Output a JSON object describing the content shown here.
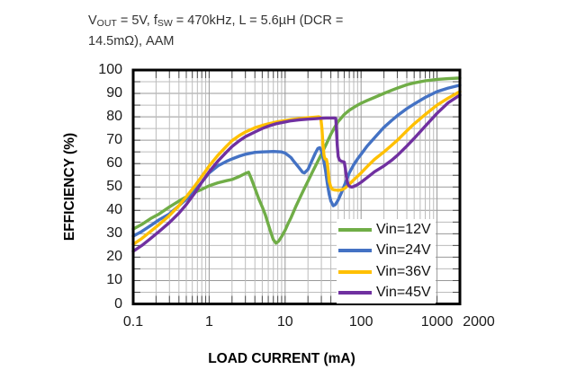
{
  "header": {
    "title_plain": "VOUT = 5V, fSW = 470kHz, L = 5.6µH (DCR = 14.5mΩ), AAM",
    "title_lines": [
      [
        {
          "t": "V"
        },
        {
          "t": "OUT",
          "sub": true
        },
        {
          "t": " = 5V, f"
        },
        {
          "t": "SW",
          "sub": true
        },
        {
          "t": " = 470kHz, L = 5.6µH (DCR ="
        }
      ],
      [
        {
          "t": "14.5mΩ), AAM"
        }
      ]
    ]
  },
  "chart_data": {
    "type": "line",
    "title": "VOUT = 5V, fSW = 470kHz, L = 5.6µH (DCR = 14.5mΩ), AAM",
    "xlabel": "LOAD CURRENT (mA)",
    "ylabel": "EFFICIENCY (%)",
    "x_scale": "log",
    "xlim_mA": [
      0.1,
      2000
    ],
    "ylim_pct": [
      0,
      100
    ],
    "x_ticks": {
      "values": [
        0.1,
        1,
        10,
        100,
        1000,
        2000
      ],
      "labels": [
        "0.1",
        "1",
        "10",
        "100",
        "1000",
        "2000"
      ]
    },
    "y_ticks": {
      "step": 10
    },
    "grid": {
      "y_step_pct": 5,
      "x_log_minors": true
    },
    "frame_color": "#000000",
    "gridline_color_minor": "#bcbcbc",
    "gridline_color_major": "#999999",
    "tick_color": "#4d4d4d",
    "legend_position": "inside-lower-right",
    "series": [
      {
        "name": "Vin=12V",
        "color": "#70AD47",
        "points": [
          [
            0.1,
            32
          ],
          [
            0.13,
            34
          ],
          [
            0.17,
            36.5
          ],
          [
            0.22,
            38.5
          ],
          [
            0.3,
            41.5
          ],
          [
            0.4,
            44
          ],
          [
            0.5,
            45.8
          ],
          [
            0.65,
            47.8
          ],
          [
            0.8,
            49
          ],
          [
            1,
            50.5
          ],
          [
            1.3,
            51.8
          ],
          [
            1.7,
            52.7
          ],
          [
            2,
            53.2
          ],
          [
            2.5,
            54.5
          ],
          [
            3,
            55.8
          ],
          [
            3.3,
            56.3
          ],
          [
            3.6,
            53.5
          ],
          [
            4,
            49.5
          ],
          [
            4.5,
            45
          ],
          [
            5,
            41.5
          ],
          [
            5.5,
            38
          ],
          [
            6,
            34
          ],
          [
            6.5,
            30.5
          ],
          [
            7,
            27.5
          ],
          [
            7.6,
            26
          ],
          [
            8.2,
            26.8
          ],
          [
            9,
            28.8
          ],
          [
            10,
            31.5
          ],
          [
            11,
            34.5
          ],
          [
            12,
            37
          ],
          [
            14,
            42
          ],
          [
            16,
            46
          ],
          [
            18,
            49.5
          ],
          [
            20,
            52.5
          ],
          [
            23,
            56.5
          ],
          [
            26,
            60
          ],
          [
            30,
            64
          ],
          [
            35,
            68.5
          ],
          [
            40,
            72.5
          ],
          [
            45,
            75.5
          ],
          [
            50,
            78
          ],
          [
            60,
            81
          ],
          [
            70,
            82.8
          ],
          [
            80,
            84
          ],
          [
            90,
            85
          ],
          [
            100,
            85.8
          ],
          [
            120,
            87
          ],
          [
            150,
            88.3
          ],
          [
            200,
            90
          ],
          [
            250,
            91.3
          ],
          [
            300,
            92.3
          ],
          [
            400,
            93.7
          ],
          [
            500,
            94.5
          ],
          [
            700,
            95.4
          ],
          [
            1000,
            96
          ],
          [
            1400,
            96.3
          ],
          [
            2000,
            96.6
          ]
        ]
      },
      {
        "name": "Vin=24V",
        "color": "#4472C4",
        "points": [
          [
            0.1,
            29
          ],
          [
            0.13,
            31
          ],
          [
            0.17,
            33.5
          ],
          [
            0.22,
            36
          ],
          [
            0.3,
            38.5
          ],
          [
            0.4,
            42
          ],
          [
            0.5,
            44.8
          ],
          [
            0.65,
            48.5
          ],
          [
            0.8,
            52
          ],
          [
            1,
            56
          ],
          [
            1.3,
            59
          ],
          [
            1.7,
            61
          ],
          [
            2,
            62
          ],
          [
            2.5,
            63.2
          ],
          [
            3,
            64
          ],
          [
            4,
            64.8
          ],
          [
            5,
            65
          ],
          [
            6,
            65.1
          ],
          [
            7,
            65.2
          ],
          [
            8,
            65.1
          ],
          [
            9,
            65
          ],
          [
            10,
            64.5
          ],
          [
            11,
            63.5
          ],
          [
            12,
            62.5
          ],
          [
            13,
            61
          ],
          [
            15,
            58.5
          ],
          [
            17,
            56.3
          ],
          [
            18,
            56
          ],
          [
            20,
            57.5
          ],
          [
            22,
            60.5
          ],
          [
            25,
            64.5
          ],
          [
            27,
            66.5
          ],
          [
            28.5,
            66.8
          ],
          [
            30,
            65.5
          ],
          [
            32,
            62
          ],
          [
            34,
            57
          ],
          [
            36,
            51.5
          ],
          [
            38,
            47
          ],
          [
            40,
            44
          ],
          [
            43,
            42
          ],
          [
            46,
            42.5
          ],
          [
            50,
            44.5
          ],
          [
            55,
            47.5
          ],
          [
            60,
            50.5
          ],
          [
            70,
            56
          ],
          [
            80,
            59.5
          ],
          [
            90,
            62
          ],
          [
            100,
            64
          ],
          [
            120,
            67.5
          ],
          [
            150,
            71
          ],
          [
            200,
            75.5
          ],
          [
            250,
            78.3
          ],
          [
            300,
            80.5
          ],
          [
            400,
            83.5
          ],
          [
            500,
            85.5
          ],
          [
            700,
            88.3
          ],
          [
            1000,
            90.8
          ],
          [
            1400,
            92.3
          ],
          [
            2000,
            93.5
          ]
        ]
      },
      {
        "name": "Vin=36V",
        "color": "#FFC000",
        "points": [
          [
            0.1,
            25.5
          ],
          [
            0.13,
            28
          ],
          [
            0.17,
            31
          ],
          [
            0.22,
            34
          ],
          [
            0.3,
            37.8
          ],
          [
            0.4,
            42
          ],
          [
            0.5,
            45.8
          ],
          [
            0.65,
            50.5
          ],
          [
            0.8,
            54.5
          ],
          [
            1,
            59
          ],
          [
            1.3,
            63.5
          ],
          [
            1.7,
            67.5
          ],
          [
            2,
            69.8
          ],
          [
            2.5,
            72
          ],
          [
            3,
            73.5
          ],
          [
            4,
            75.3
          ],
          [
            5,
            76.3
          ],
          [
            6,
            77
          ],
          [
            7,
            77.5
          ],
          [
            8,
            77.9
          ],
          [
            10,
            78.4
          ],
          [
            12,
            78.8
          ],
          [
            15,
            79.2
          ],
          [
            20,
            79.6
          ],
          [
            24,
            79.8
          ],
          [
            28,
            80
          ],
          [
            29.5,
            79.6
          ],
          [
            30.5,
            75
          ],
          [
            31.5,
            68
          ],
          [
            32.5,
            63.5
          ],
          [
            33.5,
            62
          ],
          [
            35,
            61.8
          ],
          [
            36,
            60
          ],
          [
            37,
            56.5
          ],
          [
            38,
            52.5
          ],
          [
            40,
            50
          ],
          [
            42,
            49
          ],
          [
            45,
            48.7
          ],
          [
            50,
            48.6
          ],
          [
            55,
            48.8
          ],
          [
            60,
            49.3
          ],
          [
            65,
            50.2
          ],
          [
            70,
            51.2
          ],
          [
            80,
            53
          ],
          [
            90,
            54.6
          ],
          [
            100,
            56
          ],
          [
            120,
            58.7
          ],
          [
            150,
            61.8
          ],
          [
            200,
            65
          ],
          [
            250,
            67.7
          ],
          [
            300,
            70
          ],
          [
            400,
            74
          ],
          [
            500,
            77
          ],
          [
            700,
            81
          ],
          [
            1000,
            85
          ],
          [
            1400,
            88
          ],
          [
            2000,
            90.8
          ]
        ]
      },
      {
        "name": "Vin=45V",
        "color": "#7030A0",
        "points": [
          [
            0.1,
            22.5
          ],
          [
            0.13,
            25
          ],
          [
            0.17,
            28
          ],
          [
            0.22,
            31
          ],
          [
            0.3,
            34.8
          ],
          [
            0.4,
            38.8
          ],
          [
            0.5,
            42.5
          ],
          [
            0.65,
            47.5
          ],
          [
            0.8,
            52
          ],
          [
            1,
            56.5
          ],
          [
            1.3,
            61
          ],
          [
            1.7,
            65
          ],
          [
            2,
            67.3
          ],
          [
            2.5,
            69.8
          ],
          [
            3,
            71.5
          ],
          [
            4,
            73.5
          ],
          [
            5,
            75
          ],
          [
            6,
            76
          ],
          [
            7,
            76.7
          ],
          [
            8,
            77.2
          ],
          [
            10,
            77.8
          ],
          [
            12,
            78.3
          ],
          [
            15,
            78.7
          ],
          [
            20,
            79
          ],
          [
            25,
            79.2
          ],
          [
            30,
            79.4
          ],
          [
            35,
            79.5
          ],
          [
            40,
            79.5
          ],
          [
            45,
            79.5
          ],
          [
            46.5,
            79.3
          ],
          [
            47.5,
            74
          ],
          [
            48.5,
            68
          ],
          [
            50,
            63
          ],
          [
            52,
            61.5
          ],
          [
            55,
            61
          ],
          [
            58,
            60.8
          ],
          [
            60,
            60.6
          ],
          [
            62,
            58
          ],
          [
            64,
            54.5
          ],
          [
            66,
            52
          ],
          [
            68,
            50.8
          ],
          [
            72,
            50.1
          ],
          [
            76,
            50
          ],
          [
            80,
            50.2
          ],
          [
            90,
            51
          ],
          [
            100,
            52
          ],
          [
            120,
            54
          ],
          [
            150,
            56.5
          ],
          [
            200,
            59
          ],
          [
            250,
            61.3
          ],
          [
            300,
            63.5
          ],
          [
            400,
            67.5
          ],
          [
            500,
            70.8
          ],
          [
            700,
            76
          ],
          [
            1000,
            81.5
          ],
          [
            1400,
            86
          ],
          [
            2000,
            89.3
          ]
        ]
      }
    ]
  }
}
